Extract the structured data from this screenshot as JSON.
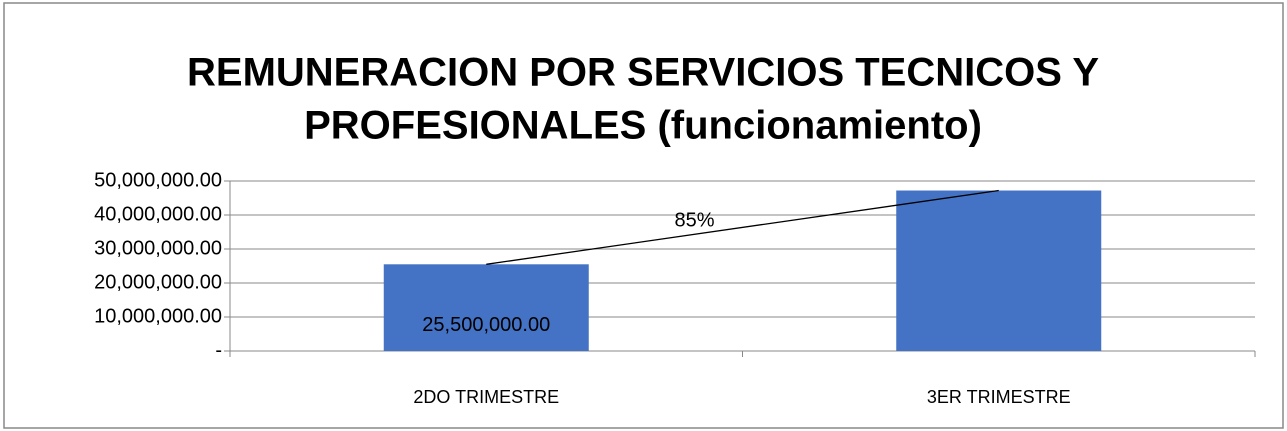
{
  "chart_data": {
    "type": "bar",
    "title": [
      "REMUNERACION POR SERVICIOS TECNICOS Y",
      "PROFESIONALES (funcionamiento)"
    ],
    "categories": [
      "2DO TRIMESTRE",
      "3ER TRIMESTRE"
    ],
    "values": [
      25500000,
      47200000
    ],
    "value_labels": [
      "25,500,000.00",
      null
    ],
    "color": "#4472c4",
    "ylim": [
      0,
      50000000
    ],
    "yticks": [
      {
        "value": 0,
        "label": "-"
      },
      {
        "value": 10000000,
        "label": "10,000,000.00"
      },
      {
        "value": 20000000,
        "label": "20,000,000.00"
      },
      {
        "value": 30000000,
        "label": "30,000,000.00"
      },
      {
        "value": 40000000,
        "label": "40,000,000.00"
      },
      {
        "value": 50000000,
        "label": "50,000,000.00"
      }
    ],
    "grid": true,
    "annotation": "85%"
  }
}
